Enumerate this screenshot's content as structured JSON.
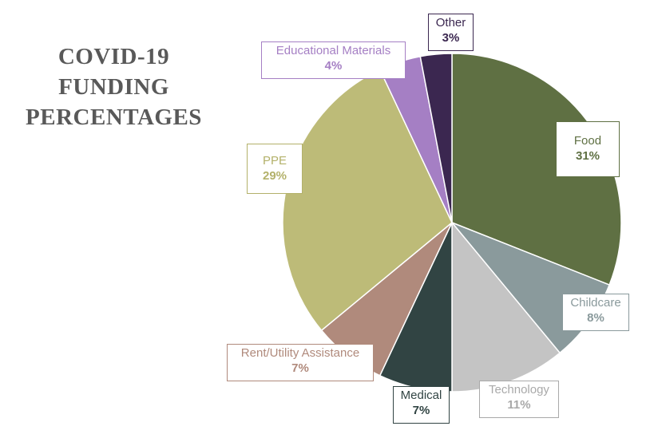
{
  "chart_data": {
    "type": "pie",
    "title_lines": [
      "COVID-19",
      "FUNDING",
      "PERCENTAGES"
    ],
    "start_angle_deg": 0,
    "direction": "clockwise",
    "slices": [
      {
        "label": "Food",
        "value": 31,
        "value_label": "31%",
        "color": "#5f7043",
        "text_color": "#5f7043"
      },
      {
        "label": "Childcare",
        "value": 8,
        "value_label": "8%",
        "color": "#8a9a9c",
        "text_color": "#8a9a9c"
      },
      {
        "label": "Technology",
        "value": 11,
        "value_label": "11%",
        "color": "#c4c4c4",
        "text_color": "#a9a9a9"
      },
      {
        "label": "Medical",
        "value": 7,
        "value_label": "7%",
        "color": "#314443",
        "text_color": "#314443"
      },
      {
        "label": "Rent/Utility Assistance",
        "value": 7,
        "value_label": "7%",
        "color": "#b08a7c",
        "text_color": "#b08a7c"
      },
      {
        "label": "PPE",
        "value": 29,
        "value_label": "29%",
        "color": "#bdbb78",
        "text_color": "#b3b16a"
      },
      {
        "label": "Educational Materials",
        "value": 4,
        "value_label": "4%",
        "color": "#a57fc4",
        "text_color": "#a57fc4"
      },
      {
        "label": "Other",
        "value": 3,
        "value_label": "3%",
        "color": "#3b2750",
        "text_color": "#3b2750"
      }
    ]
  }
}
